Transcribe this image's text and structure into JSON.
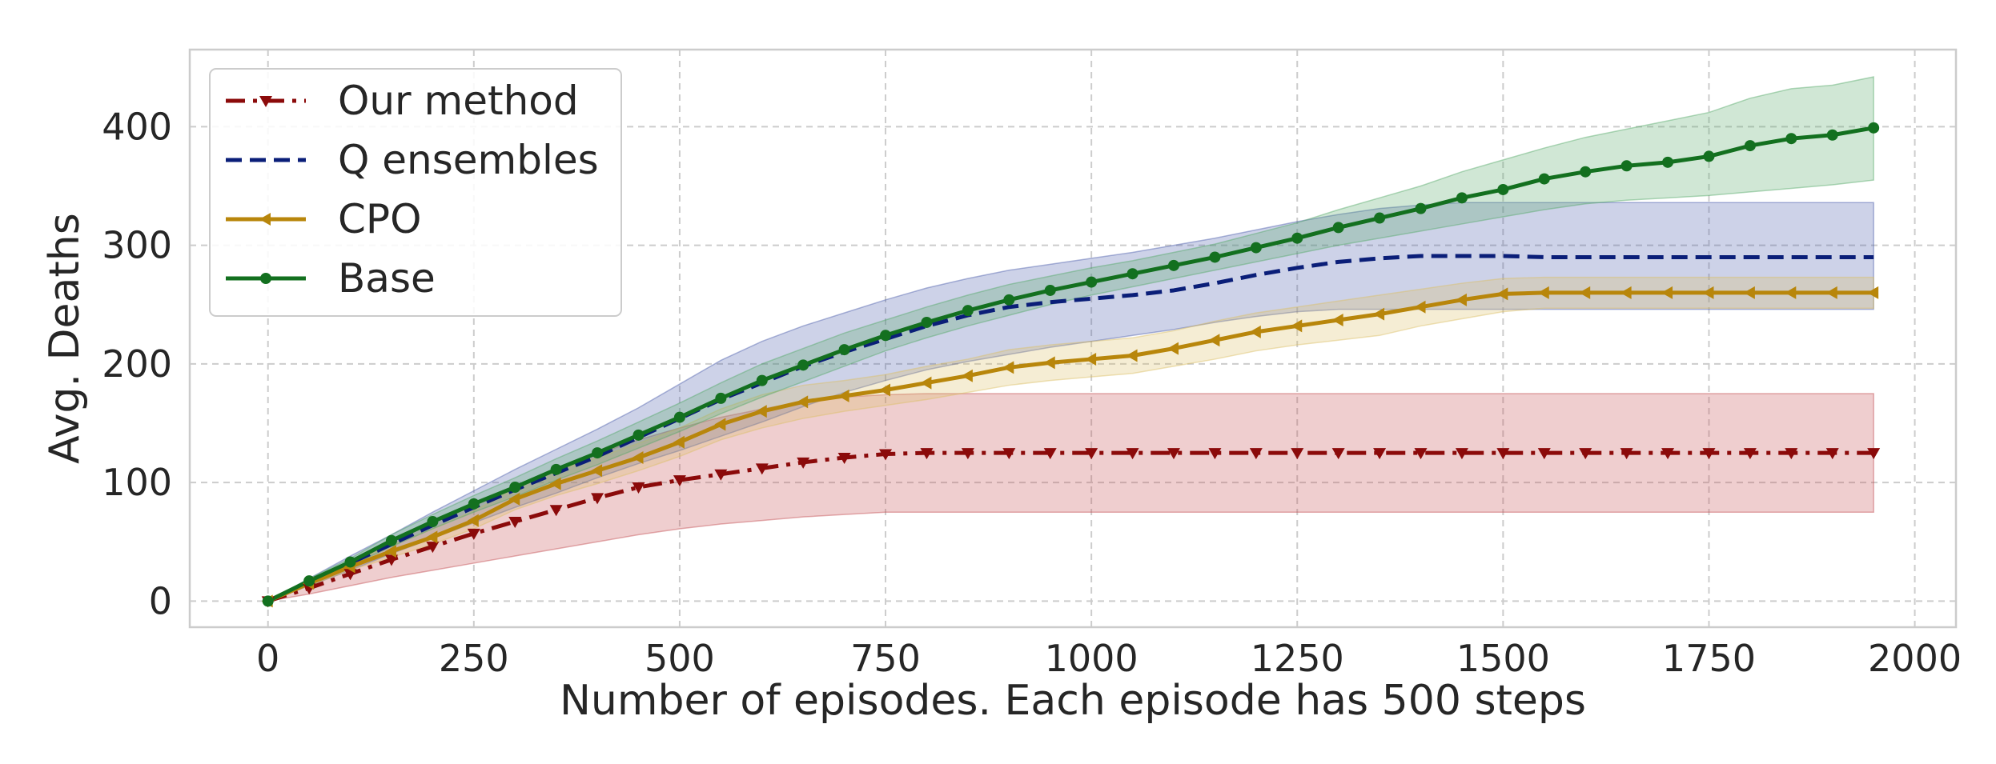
{
  "chart_data": {
    "type": "line",
    "title": "",
    "xlabel": "Number of episodes. Each episode has 500 steps",
    "ylabel": "Avg. Deaths",
    "xlim": [
      -95,
      2050
    ],
    "ylim": [
      -22,
      465
    ],
    "xticks": [
      0,
      250,
      500,
      750,
      1000,
      1250,
      1500,
      1750,
      2000
    ],
    "yticks": [
      0,
      100,
      200,
      300,
      400
    ],
    "grid": true,
    "legend_position": "top-left",
    "x": [
      0,
      50,
      100,
      150,
      200,
      250,
      300,
      350,
      400,
      450,
      500,
      550,
      600,
      650,
      700,
      750,
      800,
      850,
      900,
      950,
      1000,
      1050,
      1100,
      1150,
      1200,
      1250,
      1300,
      1350,
      1400,
      1450,
      1500,
      1550,
      1600,
      1650,
      1700,
      1750,
      1800,
      1850,
      1900,
      1950
    ],
    "series": [
      {
        "name": "Our method",
        "color": "#8b0a0a",
        "band_color": "#c44e52",
        "line_style": "dashdot",
        "marker": "triangle-down",
        "values": [
          0,
          11,
          23,
          35,
          46,
          57,
          67,
          77,
          87,
          96,
          102,
          107,
          112,
          117,
          121,
          124,
          125,
          125,
          125,
          125,
          125,
          125,
          125,
          125,
          125,
          125,
          125,
          125,
          125,
          125,
          125,
          125,
          125,
          125,
          125,
          125,
          125,
          125,
          125,
          125
        ],
        "lower": [
          0,
          6,
          13,
          20,
          26,
          32,
          38,
          44,
          50,
          56,
          61,
          65,
          68,
          71,
          73,
          75,
          75,
          75,
          75,
          75,
          75,
          75,
          75,
          75,
          75,
          75,
          75,
          75,
          75,
          75,
          75,
          75,
          75,
          75,
          75,
          75,
          75,
          75,
          75,
          75
        ],
        "upper": [
          0,
          16,
          33,
          50,
          66,
          82,
          96,
          110,
          124,
          136,
          146,
          155,
          162,
          168,
          172,
          174,
          175,
          175,
          175,
          175,
          175,
          175,
          175,
          175,
          175,
          175,
          175,
          175,
          175,
          175,
          175,
          175,
          175,
          175,
          175,
          175,
          175,
          175,
          175,
          175
        ]
      },
      {
        "name": "Q ensembles",
        "color": "#0a1e78",
        "band_color": "#4c5dab",
        "line_style": "dashed",
        "marker": "none",
        "values": [
          0,
          16,
          32,
          48,
          64,
          79,
          94,
          108,
          122,
          138,
          154,
          170,
          184,
          198,
          210,
          221,
          232,
          241,
          248,
          252,
          255,
          258,
          262,
          268,
          275,
          281,
          286,
          289,
          291,
          291,
          291,
          290,
          290,
          290,
          290,
          290,
          290,
          290,
          290,
          290
        ],
        "lower": [
          0,
          13,
          26,
          40,
          53,
          66,
          79,
          91,
          104,
          116,
          127,
          139,
          151,
          164,
          176,
          186,
          195,
          202,
          208,
          214,
          219,
          224,
          229,
          235,
          240,
          244,
          246,
          246,
          246,
          246,
          246,
          246,
          246,
          246,
          246,
          246,
          246,
          246,
          246,
          246
        ],
        "upper": [
          0,
          19,
          38,
          56,
          75,
          93,
          111,
          128,
          145,
          163,
          183,
          203,
          219,
          232,
          243,
          254,
          264,
          272,
          279,
          284,
          289,
          294,
          300,
          306,
          313,
          320,
          326,
          331,
          334,
          336,
          336,
          336,
          336,
          336,
          336,
          336,
          336,
          336,
          336,
          336
        ]
      },
      {
        "name": "CPO",
        "color": "#b8860b",
        "band_color": "#dbbe63",
        "line_style": "solid",
        "marker": "triangle-left",
        "values": [
          0,
          15,
          29,
          42,
          54,
          68,
          86,
          99,
          110,
          121,
          134,
          149,
          160,
          168,
          173,
          178,
          184,
          190,
          197,
          201,
          204,
          207,
          213,
          220,
          227,
          232,
          237,
          242,
          248,
          254,
          259,
          260,
          260,
          260,
          260,
          260,
          260,
          260,
          260,
          260
        ],
        "lower": [
          0,
          13,
          26,
          37,
          48,
          61,
          77,
          89,
          99,
          110,
          122,
          136,
          146,
          154,
          160,
          165,
          170,
          176,
          182,
          186,
          189,
          192,
          198,
          204,
          211,
          216,
          220,
          224,
          232,
          238,
          244,
          247,
          247,
          247,
          247,
          247,
          247,
          247,
          247,
          247
        ],
        "upper": [
          0,
          17,
          33,
          47,
          61,
          76,
          95,
          110,
          121,
          133,
          146,
          162,
          174,
          182,
          186,
          191,
          198,
          204,
          212,
          216,
          219,
          222,
          228,
          236,
          243,
          248,
          253,
          258,
          263,
          268,
          272,
          273,
          273,
          273,
          273,
          273,
          273,
          273,
          273,
          273
        ]
      },
      {
        "name": "Base",
        "color": "#13701f",
        "band_color": "#55a868",
        "line_style": "solid",
        "marker": "circle",
        "values": [
          0,
          17,
          33,
          51,
          67,
          82,
          96,
          111,
          125,
          140,
          155,
          171,
          186,
          199,
          212,
          224,
          235,
          245,
          254,
          262,
          269,
          276,
          283,
          290,
          298,
          306,
          315,
          323,
          331,
          340,
          347,
          356,
          362,
          367,
          370,
          375,
          384,
          390,
          393,
          399
        ],
        "lower": [
          0,
          15,
          30,
          46,
          61,
          75,
          88,
          102,
          115,
          129,
          143,
          158,
          172,
          185,
          198,
          211,
          222,
          232,
          241,
          250,
          258,
          265,
          272,
          279,
          286,
          293,
          300,
          306,
          312,
          318,
          324,
          330,
          335,
          338,
          340,
          342,
          345,
          348,
          351,
          355
        ],
        "upper": [
          0,
          19,
          36,
          56,
          73,
          89,
          104,
          120,
          135,
          151,
          167,
          184,
          200,
          213,
          226,
          237,
          248,
          258,
          267,
          274,
          281,
          287,
          294,
          301,
          310,
          319,
          330,
          340,
          350,
          362,
          372,
          382,
          391,
          398,
          405,
          412,
          424,
          432,
          435,
          442
        ]
      }
    ]
  }
}
